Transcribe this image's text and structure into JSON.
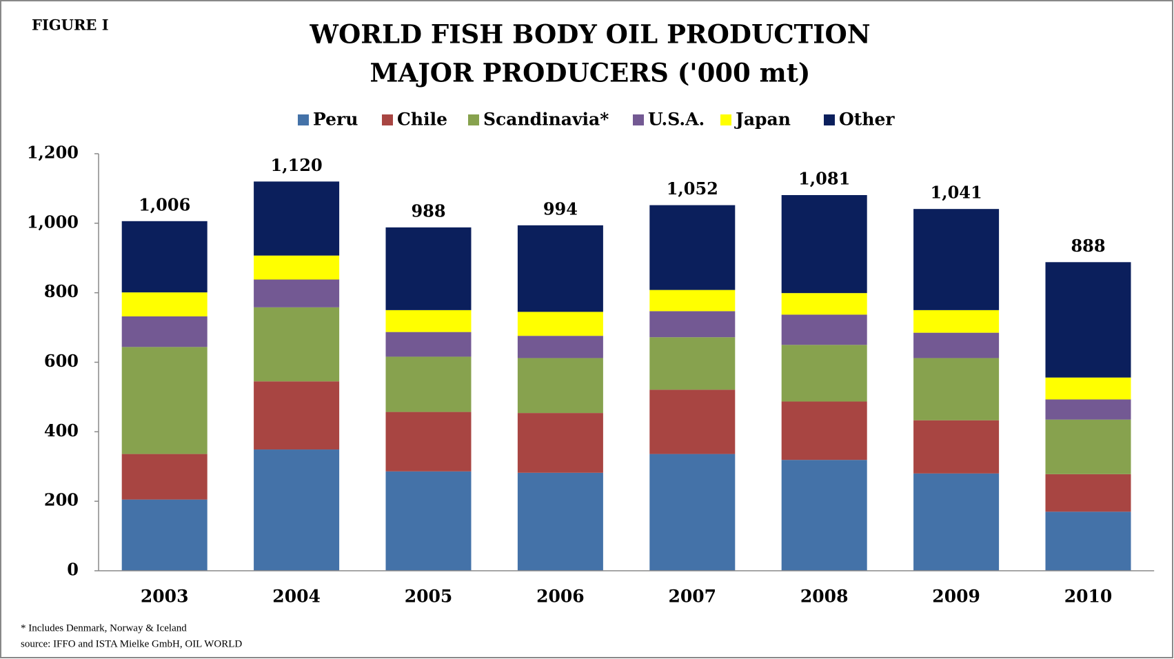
{
  "chart_data": {
    "type": "stacked_bar",
    "label": "FIGURE I",
    "title": "WORLD FISH BODY OIL PRODUCTION",
    "subtitle": "MAJOR PRODUCERS ('000 mt)",
    "categories": [
      "2003",
      "2004",
      "2005",
      "2006",
      "2007",
      "2008",
      "2009",
      "2010"
    ],
    "series": [
      {
        "name": "Peru",
        "color": "#4472a8",
        "values": [
          205,
          349,
          286,
          282,
          336,
          319,
          280,
          170
        ]
      },
      {
        "name": "Chile",
        "color": "#a84542",
        "values": [
          131,
          196,
          171,
          172,
          185,
          168,
          153,
          108
        ]
      },
      {
        "name": "Scandinavia*",
        "color": "#87a24e",
        "values": [
          308,
          213,
          159,
          158,
          151,
          163,
          179,
          157
        ]
      },
      {
        "name": "U.S.A.",
        "color": "#735993",
        "values": [
          88,
          80,
          71,
          64,
          75,
          87,
          73,
          58
        ]
      },
      {
        "name": "Japan",
        "color": "#ffff00",
        "values": [
          69,
          69,
          63,
          69,
          61,
          62,
          65,
          63
        ]
      },
      {
        "name": "Other",
        "color": "#0b1f5c",
        "values": [
          205,
          213,
          238,
          249,
          244,
          282,
          291,
          332
        ]
      }
    ],
    "totals": [
      1006,
      1120,
      988,
      994,
      1052,
      1081,
      1041,
      888
    ],
    "total_labels": [
      "1,006",
      "1,120",
      "988",
      "994",
      "1,052",
      "1,081",
      "1,041",
      "888"
    ],
    "ylim": [
      0,
      1200
    ],
    "yticks": [
      0,
      200,
      400,
      600,
      800,
      {
        "value": 1000,
        "label": "1,000"
      },
      {
        "value": 1200,
        "label": "1,200"
      }
    ],
    "grid": false,
    "legend": "top",
    "notes": [
      "* Includes Denmark, Norway & Iceland",
      "source: IFFO and ISTA Mielke GmbH, OIL WORLD"
    ]
  }
}
